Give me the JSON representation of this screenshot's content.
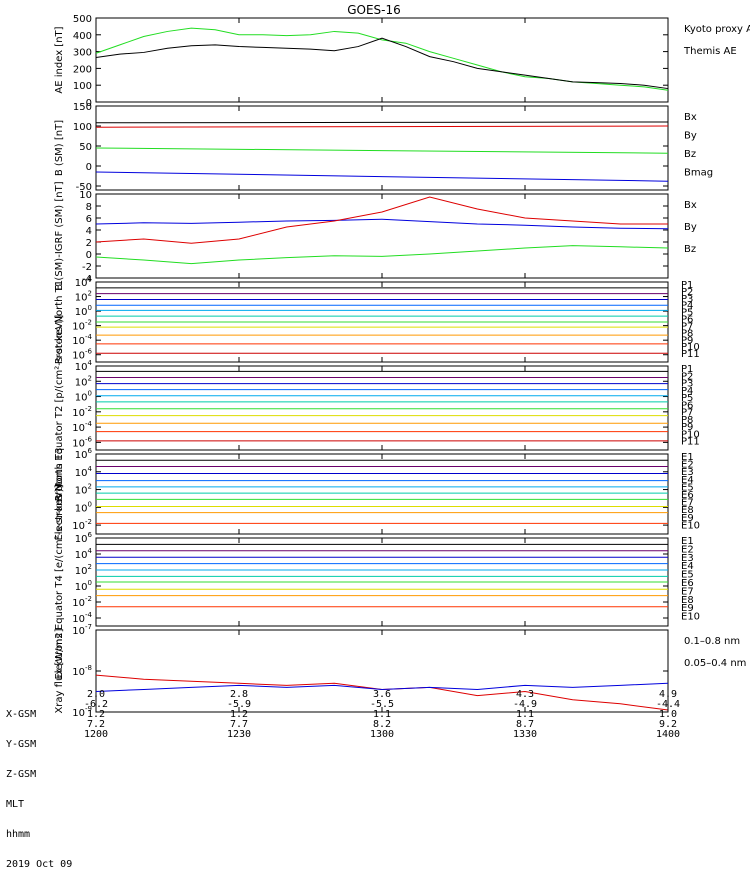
{
  "colors": {
    "black": "#000000",
    "green": "#22dd22",
    "blue": "#0000dd",
    "red": "#dd0000",
    "p_channels": [
      "#000000",
      "#6a006a",
      "#0000cc",
      "#0066ff",
      "#00aaee",
      "#00ccaa",
      "#33dd33",
      "#dddd00",
      "#ff9900",
      "#ff3300",
      "#cc0000"
    ],
    "e_channels": [
      "#000000",
      "#6a006a",
      "#0000cc",
      "#0066ff",
      "#00aaee",
      "#00ccaa",
      "#33dd33",
      "#dddd00",
      "#ff9900",
      "#ff3300",
      "#cc0000"
    ]
  },
  "figure_title": "GOES-16",
  "footer": {
    "row_labels": [
      "X-GSM",
      "Y-GSM",
      "Z-GSM",
      "MLT",
      "hhmm",
      "2019 Oct 09"
    ],
    "ticks": [
      {
        "x_gsm": "2.0",
        "y_gsm": "-6.2",
        "z_gsm": "1.2",
        "mlt": "7.2",
        "hhmm": "1200"
      },
      {
        "x_gsm": "2.8",
        "y_gsm": "-5.9",
        "z_gsm": "1.2",
        "mlt": "7.7",
        "hhmm": "1230"
      },
      {
        "x_gsm": "3.6",
        "y_gsm": "-5.5",
        "z_gsm": "1.1",
        "mlt": "8.2",
        "hhmm": "1300"
      },
      {
        "x_gsm": "4.3",
        "y_gsm": "-4.9",
        "z_gsm": "1.1",
        "mlt": "8.7",
        "hhmm": "1330"
      },
      {
        "x_gsm": "4.9",
        "y_gsm": "-4.4",
        "z_gsm": "1.0",
        "mlt": "9.2",
        "hhmm": "1400"
      }
    ]
  },
  "chart_data": [
    {
      "type": "line",
      "title": "GOES-16",
      "ylabel": "AE index [nT]",
      "ylim": [
        0,
        500
      ],
      "yticks": [
        "500",
        "400",
        "300",
        "200",
        "100",
        "0"
      ],
      "series": [
        {
          "name": "Kyoto proxy AE",
          "color": "#22dd22",
          "x": [
            0,
            5,
            10,
            15,
            20,
            25,
            30,
            35,
            40,
            45,
            50,
            55,
            60,
            65,
            70,
            75,
            80,
            85,
            90,
            95,
            100,
            105,
            110,
            115,
            120
          ],
          "values": [
            290,
            340,
            390,
            420,
            440,
            430,
            400,
            400,
            395,
            400,
            420,
            410,
            370,
            350,
            300,
            260,
            220,
            180,
            150,
            140,
            120,
            110,
            100,
            90,
            70
          ]
        },
        {
          "name": "Themis AE",
          "color": "#000000",
          "x": [
            0,
            5,
            10,
            15,
            20,
            25,
            30,
            35,
            40,
            45,
            50,
            55,
            60,
            65,
            70,
            75,
            80,
            85,
            90,
            95,
            100,
            105,
            110,
            115,
            120
          ],
          "values": [
            265,
            285,
            295,
            320,
            335,
            340,
            330,
            325,
            320,
            315,
            305,
            330,
            380,
            330,
            270,
            240,
            200,
            180,
            160,
            140,
            120,
            115,
            110,
            100,
            80
          ]
        }
      ]
    },
    {
      "type": "line",
      "ylabel": "B (SM) [nT]",
      "ylim": [
        -60,
        150
      ],
      "yticks": [
        "150",
        "100",
        "50",
        "0",
        "-50"
      ],
      "series": [
        {
          "name": "Bx",
          "color": "#0000dd",
          "x": [
            0,
            120
          ],
          "values": [
            -15,
            -38
          ]
        },
        {
          "name": "By",
          "color": "#22dd22",
          "x": [
            0,
            120
          ],
          "values": [
            45,
            32
          ]
        },
        {
          "name": "Bz",
          "color": "#dd0000",
          "x": [
            0,
            120
          ],
          "values": [
            97,
            100
          ]
        },
        {
          "name": "Bmag",
          "color": "#000000",
          "x": [
            0,
            120
          ],
          "values": [
            108,
            110
          ]
        }
      ]
    },
    {
      "type": "line",
      "ylabel": "B (SM)-IGRF (SM) [nT]",
      "ylim": [
        -4,
        10
      ],
      "yticks": [
        "10",
        "8",
        "6",
        "4",
        "2",
        "0",
        "-2",
        "-4"
      ],
      "series": [
        {
          "name": "Bx",
          "color": "#0000dd",
          "x": [
            0,
            10,
            20,
            30,
            40,
            50,
            60,
            70,
            80,
            90,
            100,
            110,
            120
          ],
          "values": [
            5,
            5.2,
            5.1,
            5.3,
            5.5,
            5.6,
            5.8,
            5.4,
            5,
            4.8,
            4.5,
            4.3,
            4.2
          ]
        },
        {
          "name": "By",
          "color": "#22dd22",
          "x": [
            0,
            10,
            20,
            30,
            40,
            50,
            60,
            70,
            80,
            90,
            100,
            110,
            120
          ],
          "values": [
            -0.5,
            -1,
            -1.6,
            -1,
            -0.6,
            -0.3,
            -0.4,
            0,
            0.5,
            1,
            1.4,
            1.2,
            1
          ]
        },
        {
          "name": "Bz",
          "color": "#dd0000",
          "x": [
            0,
            10,
            20,
            30,
            40,
            50,
            60,
            70,
            80,
            90,
            100,
            110,
            120
          ],
          "values": [
            2,
            2.5,
            1.8,
            2.5,
            4.5,
            5.5,
            7,
            9.5,
            7.5,
            6,
            5.5,
            5,
            5
          ]
        }
      ]
    },
    {
      "type": "line",
      "ylabel": "Protons North T1",
      "log_scale": true,
      "ylim_exp": [
        -7,
        4
      ],
      "yticks": [
        "10^4",
        "10^2",
        "10^0",
        "10^-2",
        "10^-4",
        "10^-6"
      ],
      "series_names": [
        "P1",
        "P2",
        "P3",
        "P4",
        "P5",
        "P6",
        "P7",
        "P8",
        "P9",
        "P10",
        "P11"
      ],
      "levels_exp": [
        3.2,
        2.4,
        1.6,
        0.8,
        0.1,
        -0.7,
        -1.5,
        -2.2,
        -3.3,
        -4.5,
        -5.8
      ]
    },
    {
      "type": "line",
      "ylabel": "Protons Equator T2 [p/(cm²-s-sr-keV)]",
      "log_scale": true,
      "ylim_exp": [
        -7,
        4
      ],
      "yticks": [
        "10^4",
        "10^2",
        "10^0",
        "10^-2",
        "10^-4",
        "10^-6"
      ],
      "series_names": [
        "P1",
        "P2",
        "P3",
        "P4",
        "P5",
        "P6",
        "P7",
        "P8",
        "P9",
        "P10",
        "P11"
      ],
      "levels_exp": [
        3.3,
        2.5,
        1.7,
        0.9,
        0.1,
        -0.7,
        -1.6,
        -2.5,
        -3.5,
        -4.6,
        -5.8
      ]
    },
    {
      "type": "line",
      "ylabel": "Electrons North T3",
      "log_scale": true,
      "ylim_exp": [
        -3,
        6
      ],
      "yticks": [
        "10^6",
        "10^4",
        "10^2",
        "10^0",
        "10^-2"
      ],
      "series_names": [
        "E1",
        "E2",
        "E3",
        "E4",
        "E5",
        "E6",
        "E7",
        "E8",
        "E9",
        "E10"
      ],
      "levels_exp": [
        5.3,
        4.6,
        3.8,
        3.0,
        2.3,
        1.6,
        0.9,
        0.1,
        -0.6,
        -1.8
      ]
    },
    {
      "type": "line",
      "ylabel": "Electrons Equator T4 [e/(cm²-s-sr-keV)]",
      "log_scale": true,
      "ylim_exp": [
        -5,
        6
      ],
      "yticks": [
        "10^6",
        "10^4",
        "10^2",
        "10^0",
        "10^-2",
        "10^-4"
      ],
      "series_names": [
        "E1",
        "E2",
        "E3",
        "E4",
        "E5",
        "E6",
        "E7",
        "E8",
        "E9",
        "E10"
      ],
      "levels_exp": [
        5.2,
        4.4,
        3.6,
        2.8,
        2.0,
        1.2,
        0.5,
        -0.4,
        -1.2,
        -2.6
      ]
    },
    {
      "type": "line",
      "ylabel": "Xray flux [W/m2]",
      "log_scale": true,
      "ylim_exp": [
        -9,
        -7
      ],
      "yticks": [
        "10^-7",
        "10^-8",
        "10^-9"
      ],
      "series": [
        {
          "name": "0.1–0.8 nm",
          "color": "#dd0000",
          "x": [
            0,
            10,
            20,
            30,
            40,
            50,
            60,
            70,
            80,
            90,
            100,
            110,
            120
          ],
          "values_exp": [
            -8.1,
            -8.2,
            -8.25,
            -8.3,
            -8.35,
            -8.3,
            -8.45,
            -8.4,
            -8.6,
            -8.5,
            -8.7,
            -8.8,
            -8.95
          ]
        },
        {
          "name": "0.05–0.4 nm",
          "color": "#0000dd",
          "x": [
            0,
            10,
            20,
            30,
            40,
            50,
            60,
            70,
            80,
            90,
            100,
            110,
            120
          ],
          "values_exp": [
            -8.5,
            -8.45,
            -8.4,
            -8.35,
            -8.4,
            -8.35,
            -8.45,
            -8.4,
            -8.45,
            -8.35,
            -8.4,
            -8.35,
            -8.3
          ]
        }
      ]
    }
  ]
}
